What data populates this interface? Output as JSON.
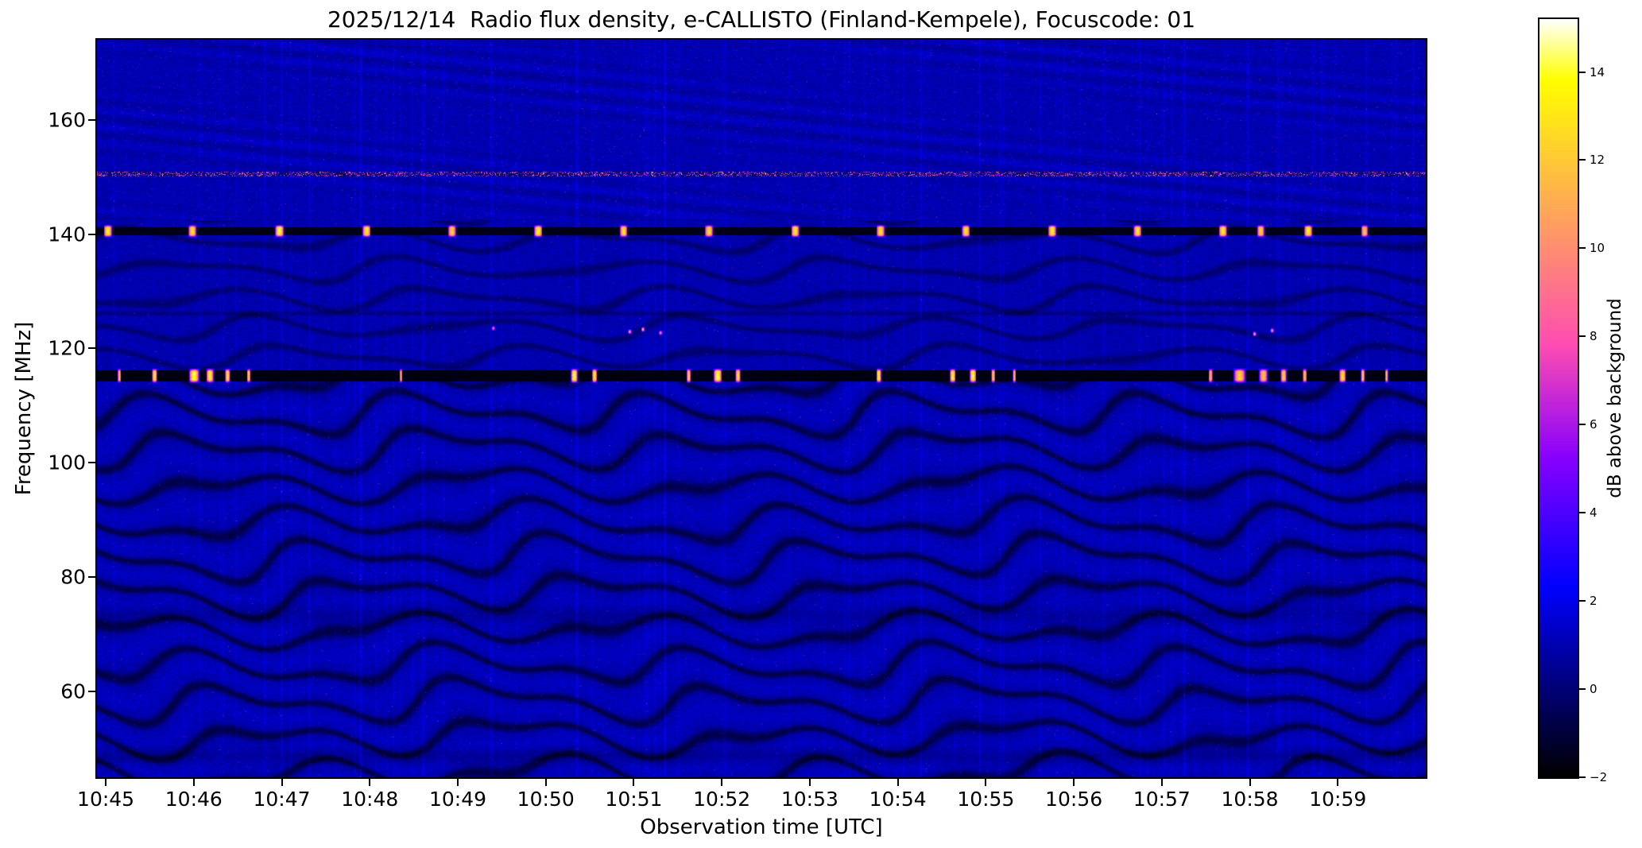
{
  "chart_data": {
    "type": "heatmap",
    "subtype": "radio-spectrogram",
    "title": "2025/12/14  Radio flux density, e-CALLISTO (Finland-Kempele), Focuscode: 01",
    "xlabel": "Observation time [UTC]",
    "ylabel": "Frequency [MHz]",
    "x_ticks": [
      "10:45",
      "10:46",
      "10:47",
      "10:48",
      "10:49",
      "10:50",
      "10:51",
      "10:52",
      "10:53",
      "10:54",
      "10:55",
      "10:56",
      "10:57",
      "10:58",
      "10:59"
    ],
    "x_tick_minutes": [
      45,
      46,
      47,
      48,
      49,
      50,
      51,
      52,
      53,
      54,
      55,
      56,
      57,
      58,
      59
    ],
    "x_range_minutes": [
      44.9,
      60.0
    ],
    "y_ticks": [
      60,
      80,
      100,
      120,
      140,
      160
    ],
    "y_range_mhz": [
      45.0,
      174.0
    ],
    "grid": false,
    "colorbar": {
      "label": "dB above background",
      "ticks": [
        14,
        12,
        10,
        8,
        6,
        4,
        2,
        0,
        -2
      ],
      "range": [
        -2.0,
        15.2
      ],
      "colormap": "gnuplot2"
    },
    "background": {
      "level_db": 1.0,
      "noise_db": 0.9,
      "color_hint": "#0000a8"
    },
    "features": {
      "fringe_region_max_mhz": 116,
      "beacon_line_mhz": 140.6,
      "beacon_bursts": [
        [
          45.02,
          0.05,
          0.95
        ],
        [
          45.98,
          0.048,
          0.9
        ],
        [
          46.97,
          0.052,
          1.0
        ],
        [
          47.96,
          0.05,
          0.92
        ],
        [
          48.93,
          0.048,
          0.85
        ],
        [
          49.91,
          0.05,
          0.95
        ],
        [
          50.88,
          0.046,
          0.9
        ],
        [
          51.85,
          0.05,
          0.88
        ],
        [
          52.83,
          0.048,
          0.95
        ],
        [
          53.8,
          0.05,
          0.9
        ],
        [
          54.77,
          0.048,
          0.92
        ],
        [
          55.75,
          0.05,
          0.95
        ],
        [
          56.72,
          0.048,
          0.9
        ],
        [
          57.69,
          0.05,
          0.93
        ],
        [
          58.12,
          0.044,
          0.85
        ],
        [
          58.66,
          0.05,
          0.95
        ],
        [
          59.3,
          0.042,
          0.8
        ]
      ],
      "rfi_line_mhz": 115.3,
      "rfi_bursts": [
        [
          45.15,
          0.02,
          0.8
        ],
        [
          45.55,
          0.03,
          0.95
        ],
        [
          46.0,
          0.06,
          1.0
        ],
        [
          46.18,
          0.045,
          0.95
        ],
        [
          46.38,
          0.03,
          0.9
        ],
        [
          46.62,
          0.022,
          0.85
        ],
        [
          48.35,
          0.018,
          0.7
        ],
        [
          50.32,
          0.04,
          1.0
        ],
        [
          50.55,
          0.03,
          0.95
        ],
        [
          51.62,
          0.025,
          0.85
        ],
        [
          51.95,
          0.05,
          1.0
        ],
        [
          52.18,
          0.03,
          0.9
        ],
        [
          53.78,
          0.03,
          0.95
        ],
        [
          54.62,
          0.035,
          0.95
        ],
        [
          54.85,
          0.04,
          1.0
        ],
        [
          55.08,
          0.022,
          0.85
        ],
        [
          55.32,
          0.018,
          0.8
        ],
        [
          57.55,
          0.025,
          0.75
        ],
        [
          57.88,
          0.07,
          0.85
        ],
        [
          58.15,
          0.05,
          0.8
        ],
        [
          58.38,
          0.035,
          0.85
        ],
        [
          58.62,
          0.025,
          0.8
        ],
        [
          59.05,
          0.04,
          0.9
        ],
        [
          59.28,
          0.022,
          0.85
        ],
        [
          59.55,
          0.018,
          0.8
        ]
      ],
      "speckle_line_mhz": 150.6,
      "dark_lines": [
        [
          126.2,
          0.6,
          0.9
        ],
        [
          73.5,
          2.5,
          0.5
        ],
        [
          48.8,
          2.0,
          0.6
        ]
      ],
      "bright_dots": [
        [
          50.95,
          123.0,
          0.6
        ],
        [
          51.1,
          123.4,
          0.65
        ],
        [
          51.3,
          122.8,
          0.55
        ],
        [
          58.05,
          122.6,
          0.6
        ],
        [
          58.25,
          123.2,
          0.6
        ],
        [
          49.4,
          123.6,
          0.5
        ]
      ]
    }
  }
}
